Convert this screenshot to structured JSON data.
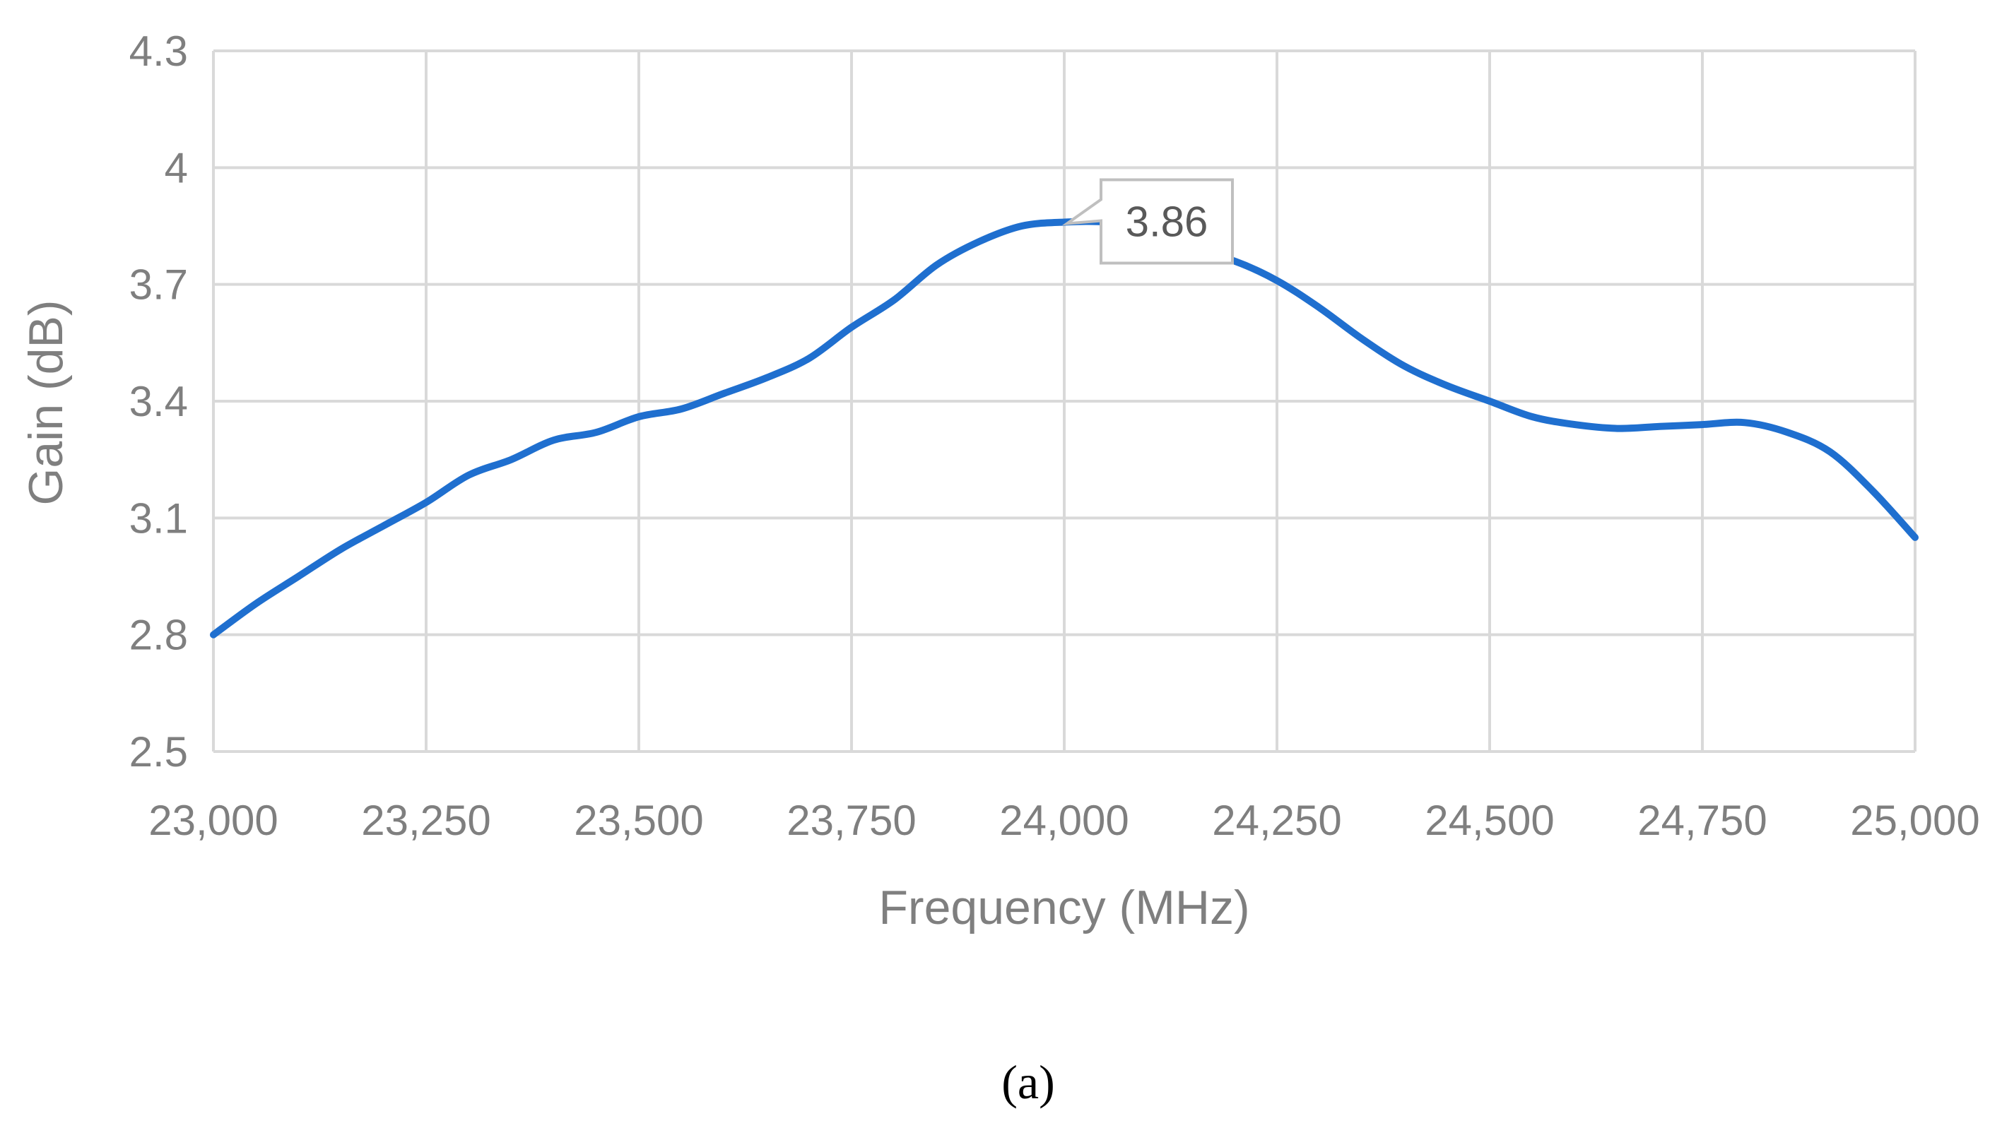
{
  "chart_data": {
    "type": "line",
    "xlabel": "Frequency (MHz)",
    "ylabel": "Gain (dB)",
    "xlim": [
      23000,
      25000
    ],
    "ylim": [
      2.5,
      4.3
    ],
    "xticks": [
      23000,
      23250,
      23500,
      23750,
      24000,
      24250,
      24500,
      24750,
      25000
    ],
    "xtick_labels": [
      "23,000",
      "23,250",
      "23,500",
      "23,750",
      "24,000",
      "24,250",
      "24,500",
      "24,750",
      "25,000"
    ],
    "yticks": [
      2.5,
      2.8,
      3.1,
      3.4,
      3.7,
      4.0,
      4.3
    ],
    "ytick_labels": [
      "2.5",
      "2.8",
      "3.1",
      "3.4",
      "3.7",
      "4",
      "4.3"
    ],
    "grid": true,
    "series": [
      {
        "color": "#1f6fcf",
        "x": [
          23000,
          23050,
          23100,
          23150,
          23200,
          23250,
          23300,
          23350,
          23400,
          23450,
          23500,
          23550,
          23600,
          23650,
          23700,
          23750,
          23800,
          23850,
          23900,
          23950,
          24000,
          24050,
          24100,
          24150,
          24200,
          24250,
          24300,
          24350,
          24400,
          24450,
          24500,
          24550,
          24600,
          24650,
          24700,
          24750,
          24800,
          24850,
          24900,
          24950,
          25000
        ],
        "y": [
          2.8,
          2.88,
          2.95,
          3.02,
          3.08,
          3.14,
          3.21,
          3.25,
          3.3,
          3.32,
          3.36,
          3.38,
          3.42,
          3.46,
          3.51,
          3.59,
          3.66,
          3.75,
          3.81,
          3.85,
          3.86,
          3.86,
          3.84,
          3.79,
          3.76,
          3.71,
          3.64,
          3.56,
          3.49,
          3.44,
          3.4,
          3.36,
          3.34,
          3.33,
          3.335,
          3.34,
          3.345,
          3.32,
          3.27,
          3.17,
          3.05
        ]
      }
    ],
    "annotations": [
      {
        "text": "3.86",
        "x": 24000,
        "y": 3.86
      }
    ]
  },
  "caption": "(a)"
}
